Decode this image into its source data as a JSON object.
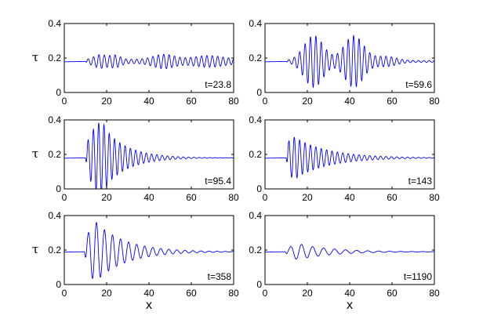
{
  "chart_data": [
    {
      "type": "line",
      "annotation": "t=23.8",
      "ylabel": "τ",
      "xlabel": "",
      "xlim": [
        0,
        80
      ],
      "ylim": [
        0,
        0.4
      ],
      "xticks": [
        0,
        20,
        40,
        60,
        80
      ],
      "yticks": [
        0,
        0.2,
        0.4
      ],
      "xtick_labels": [
        "0",
        "20",
        "40",
        "60",
        "80"
      ],
      "ytick_labels": [
        "0",
        "0.2",
        "0.4"
      ],
      "series": [
        {
          "color": "#0000ff",
          "baseline": 0.18,
          "front_x": 10,
          "wavelength": 2.55,
          "packets": [
            {
              "center": 17,
              "width": 4,
              "amplitude": 0.028
            },
            {
              "center": 24,
              "width": 3.5,
              "amplitude": 0.025
            },
            {
              "center": 47,
              "width": 7,
              "amplitude": 0.03
            },
            {
              "center": 68,
              "width": 10,
              "amplitude": 0.022
            }
          ],
          "background_amplitude": 0.012,
          "tail_decay": 0
        }
      ]
    },
    {
      "type": "line",
      "annotation": "t=59.6",
      "ylabel": "",
      "xlabel": "",
      "xlim": [
        0,
        80
      ],
      "ylim": [
        0,
        0.4
      ],
      "xticks": [
        0,
        20,
        40,
        60,
        80
      ],
      "yticks": [
        0,
        0.2,
        0.4
      ],
      "xtick_labels": [
        "0",
        "20",
        "40",
        "60",
        "80"
      ],
      "ytick_labels": [
        "0",
        "0.2",
        "0.4"
      ],
      "series": [
        {
          "color": "#0000ff",
          "baseline": 0.18,
          "front_x": 10,
          "wavelength": 2.55,
          "packets": [
            {
              "center": 23,
              "width": 6.5,
              "amplitude": 0.145
            },
            {
              "center": 42,
              "width": 6.5,
              "amplitude": 0.145
            },
            {
              "center": 57,
              "width": 7,
              "amplitude": 0.025
            }
          ],
          "background_amplitude": 0.005,
          "tail_decay": 0
        }
      ]
    },
    {
      "type": "line",
      "annotation": "t=95.4",
      "ylabel": "τ",
      "xlabel": "",
      "xlim": [
        0,
        80
      ],
      "ylim": [
        0,
        0.4
      ],
      "xticks": [
        0,
        20,
        40,
        60,
        80
      ],
      "yticks": [
        0,
        0.2,
        0.4
      ],
      "xtick_labels": [
        "0",
        "20",
        "40",
        "60",
        "80"
      ],
      "ytick_labels": [
        "0",
        "0.2",
        "0.4"
      ],
      "series": [
        {
          "color": "#0000ff",
          "baseline": 0.18,
          "front_x": 10,
          "wavelength": 2.5,
          "packets": [
            {
              "center": 17,
              "width": 7,
              "amplitude": 0.205
            }
          ],
          "background_amplitude": 0,
          "tail_decay": 11
        }
      ]
    },
    {
      "type": "line",
      "annotation": "t=143",
      "ylabel": "",
      "xlabel": "",
      "xlim": [
        0,
        80
      ],
      "ylim": [
        0,
        0.4
      ],
      "xticks": [
        0,
        20,
        40,
        60,
        80
      ],
      "yticks": [
        0,
        0.2,
        0.4
      ],
      "xtick_labels": [
        "0",
        "20",
        "40",
        "60",
        "80"
      ],
      "ytick_labels": [
        "0",
        "0.2",
        "0.4"
      ],
      "series": [
        {
          "color": "#0000ff",
          "baseline": 0.18,
          "front_x": 10,
          "wavelength": 2.55,
          "packets": [
            {
              "center": 14,
              "width": 6,
              "amplitude": 0.12
            }
          ],
          "background_amplitude": 0,
          "tail_decay": 16
        }
      ]
    },
    {
      "type": "line",
      "annotation": "t=358",
      "ylabel": "τ",
      "xlabel": "x",
      "xlim": [
        0,
        80
      ],
      "ylim": [
        0,
        0.4
      ],
      "xticks": [
        0,
        20,
        40,
        60,
        80
      ],
      "yticks": [
        0,
        0.2,
        0.4
      ],
      "xtick_labels": [
        "0",
        "20",
        "40",
        "60",
        "80"
      ],
      "ytick_labels": [
        "0",
        "0.2",
        "0.4"
      ],
      "series": [
        {
          "color": "#0000ff",
          "baseline": 0.19,
          "front_x": 9.5,
          "wavelength": 3.8,
          "packets": [
            {
              "center": 15,
              "width": 5.5,
              "amplitude": 0.17
            }
          ],
          "background_amplitude": 0,
          "tail_decay": 14
        }
      ]
    },
    {
      "type": "line",
      "annotation": "t=1190",
      "ylabel": "",
      "xlabel": "x",
      "xlim": [
        0,
        80
      ],
      "ylim": [
        0,
        0.4
      ],
      "xticks": [
        0,
        20,
        40,
        60,
        80
      ],
      "yticks": [
        0,
        0.2,
        0.4
      ],
      "xtick_labels": [
        "0",
        "20",
        "40",
        "60",
        "80"
      ],
      "ytick_labels": [
        "0",
        "0.2",
        "0.4"
      ],
      "series": [
        {
          "color": "#0000ff",
          "baseline": 0.19,
          "front_x": 9.5,
          "wavelength": 5.2,
          "packets": [
            {
              "center": 16,
              "width": 6,
              "amplitude": 0.045
            }
          ],
          "background_amplitude": 0,
          "tail_decay": 16
        }
      ]
    }
  ]
}
